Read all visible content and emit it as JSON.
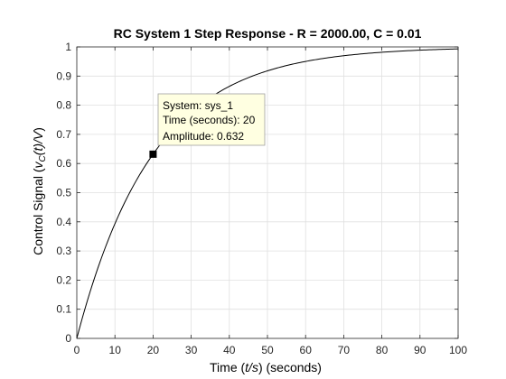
{
  "chart_data": {
    "type": "line",
    "title": "RC System 1 Step Response - R = 2000.00, C = 0.01",
    "xlabel": {
      "prefix": "Time (",
      "var": "t/s",
      "suffix": ") (seconds)"
    },
    "ylabel": {
      "prefix": "Control Signal (",
      "var_base": "v",
      "var_sub": "C",
      "var_rest": "(t)/V",
      "suffix": ")"
    },
    "xlim": [
      0,
      100
    ],
    "ylim": [
      0,
      1
    ],
    "xticks": [
      0,
      10,
      20,
      30,
      40,
      50,
      60,
      70,
      80,
      90,
      100
    ],
    "yticks": [
      0,
      0.1,
      0.2,
      0.3,
      0.4,
      0.5,
      0.6,
      0.7,
      0.8,
      0.9,
      1
    ],
    "xtick_labels": [
      "0",
      "10",
      "20",
      "30",
      "40",
      "50",
      "60",
      "70",
      "80",
      "90",
      "100"
    ],
    "ytick_labels": [
      "0",
      "0.1",
      "0.2",
      "0.3",
      "0.4",
      "0.5",
      "0.6",
      "0.7",
      "0.8",
      "0.9",
      "1"
    ],
    "grid": true,
    "series": [
      {
        "time_constant": 20,
        "x": [
          0,
          2,
          4,
          6,
          8,
          10,
          12,
          14,
          16,
          18,
          20,
          22,
          24,
          26,
          28,
          30,
          32,
          34,
          36,
          38,
          40,
          42,
          44,
          46,
          48,
          50,
          52,
          54,
          56,
          58,
          60,
          62,
          64,
          66,
          68,
          70,
          72,
          74,
          76,
          78,
          80,
          82,
          84,
          86,
          88,
          90,
          92,
          94,
          96,
          98,
          100
        ],
        "y": [
          0,
          0.0952,
          0.1813,
          0.2592,
          0.3297,
          0.3935,
          0.4512,
          0.5034,
          0.5507,
          0.5934,
          0.6321,
          0.6671,
          0.6988,
          0.7275,
          0.7534,
          0.7769,
          0.7981,
          0.8173,
          0.8347,
          0.8504,
          0.8647,
          0.8775,
          0.8892,
          0.8997,
          0.9093,
          0.9179,
          0.9257,
          0.9328,
          0.9392,
          0.945,
          0.9502,
          0.955,
          0.9592,
          0.9631,
          0.9666,
          0.9698,
          0.9727,
          0.9753,
          0.9776,
          0.9797,
          0.9817,
          0.9834,
          0.985,
          0.9864,
          0.9877,
          0.9889,
          0.9899,
          0.9909,
          0.9918,
          0.9926,
          0.9933
        ],
        "color": "#000000"
      }
    ],
    "datatip": {
      "x": 20,
      "y": 0.632,
      "lines": [
        "System: sys_1",
        "Time (seconds): 20",
        "Amplitude: 0.632"
      ],
      "background": "#ffffe1",
      "border": "#a0a0a0"
    },
    "colors": {
      "axes": "#262626",
      "grid": "#e0e0e0"
    }
  }
}
